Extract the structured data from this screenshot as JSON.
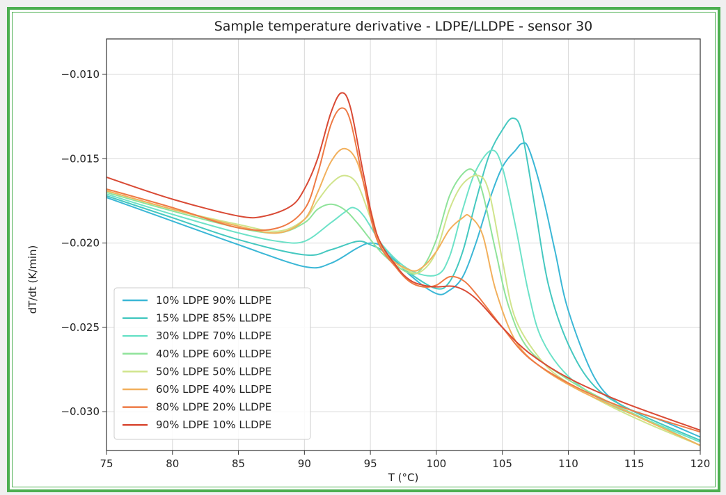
{
  "chart_data": {
    "type": "line",
    "title": "Sample temperature derivative - LDPE/LLDPE - sensor 30",
    "xlabel": "T (°C)",
    "ylabel": "dT/dt (K/min)",
    "xlim": [
      75,
      120
    ],
    "ylim": [
      -0.0323,
      -0.0079
    ],
    "xticks": [
      75,
      80,
      85,
      90,
      95,
      100,
      105,
      110,
      115,
      120
    ],
    "yticks": [
      -0.01,
      -0.015,
      -0.02,
      -0.025,
      -0.03
    ],
    "xtick_labels": [
      "75",
      "80",
      "85",
      "90",
      "95",
      "100",
      "105",
      "110",
      "115",
      "120"
    ],
    "ytick_labels": [
      "−0.010",
      "−0.015",
      "−0.020",
      "−0.025",
      "−0.030"
    ],
    "grid": true,
    "legend_position": "lower-left",
    "series": [
      {
        "name": "10% LDPE 90% LLDPE",
        "color": "#3bb7d6",
        "points": [
          [
            75,
            -0.0173
          ],
          [
            80,
            -0.0187
          ],
          [
            85,
            -0.0201
          ],
          [
            90,
            -0.0214
          ],
          [
            92,
            -0.0212
          ],
          [
            94,
            -0.0203
          ],
          [
            95,
            -0.02
          ],
          [
            96,
            -0.0203
          ],
          [
            98,
            -0.0219
          ],
          [
            100,
            -0.023
          ],
          [
            101,
            -0.0228
          ],
          [
            102,
            -0.022
          ],
          [
            103,
            -0.02
          ],
          [
            104,
            -0.0175
          ],
          [
            105,
            -0.0155
          ],
          [
            106,
            -0.0145
          ],
          [
            106.5,
            -0.0141
          ],
          [
            107,
            -0.0144
          ],
          [
            108,
            -0.017
          ],
          [
            109,
            -0.0205
          ],
          [
            110,
            -0.024
          ],
          [
            112,
            -0.028
          ],
          [
            114,
            -0.0296
          ],
          [
            117,
            -0.0305
          ],
          [
            120,
            -0.0315
          ]
        ]
      },
      {
        "name": "15% LDPE 85% LLDPE",
        "color": "#45c8c0",
        "points": [
          [
            75,
            -0.0172
          ],
          [
            80,
            -0.0185
          ],
          [
            85,
            -0.0198
          ],
          [
            90,
            -0.0207
          ],
          [
            92,
            -0.0204
          ],
          [
            94,
            -0.0199
          ],
          [
            95,
            -0.0201
          ],
          [
            96,
            -0.0205
          ],
          [
            98,
            -0.0218
          ],
          [
            100,
            -0.0227
          ],
          [
            101,
            -0.0223
          ],
          [
            102,
            -0.0205
          ],
          [
            103,
            -0.0175
          ],
          [
            104,
            -0.0148
          ],
          [
            105,
            -0.0133
          ],
          [
            105.8,
            -0.0126
          ],
          [
            106.5,
            -0.0135
          ],
          [
            107.5,
            -0.018
          ],
          [
            108.5,
            -0.0225
          ],
          [
            110,
            -0.026
          ],
          [
            112,
            -0.0285
          ],
          [
            115,
            -0.03
          ],
          [
            120,
            -0.0317
          ]
        ]
      },
      {
        "name": "30% LDPE 70% LLDPE",
        "color": "#6de2c8",
        "points": [
          [
            75,
            -0.0171
          ],
          [
            80,
            -0.0183
          ],
          [
            85,
            -0.0194
          ],
          [
            88,
            -0.0199
          ],
          [
            90,
            -0.0199
          ],
          [
            92,
            -0.0188
          ],
          [
            93,
            -0.0182
          ],
          [
            93.7,
            -0.0179
          ],
          [
            94.5,
            -0.0184
          ],
          [
            96,
            -0.0202
          ],
          [
            98,
            -0.0216
          ],
          [
            100,
            -0.0219
          ],
          [
            101,
            -0.0208
          ],
          [
            102,
            -0.018
          ],
          [
            103,
            -0.0157
          ],
          [
            104.2,
            -0.0145
          ],
          [
            105,
            -0.0155
          ],
          [
            106,
            -0.019
          ],
          [
            107,
            -0.023
          ],
          [
            108,
            -0.0257
          ],
          [
            110,
            -0.0279
          ],
          [
            113,
            -0.0295
          ],
          [
            116,
            -0.0305
          ],
          [
            120,
            -0.0318
          ]
        ]
      },
      {
        "name": "40% LDPE 60% LLDPE",
        "color": "#8fe39a",
        "points": [
          [
            75,
            -0.017
          ],
          [
            80,
            -0.0181
          ],
          [
            85,
            -0.0191
          ],
          [
            88,
            -0.0194
          ],
          [
            90,
            -0.0188
          ],
          [
            91,
            -0.018
          ],
          [
            92,
            -0.0177
          ],
          [
            93,
            -0.018
          ],
          [
            94,
            -0.0188
          ],
          [
            96,
            -0.0207
          ],
          [
            98,
            -0.0218
          ],
          [
            99,
            -0.0214
          ],
          [
            100,
            -0.0198
          ],
          [
            101,
            -0.0172
          ],
          [
            102,
            -0.0159
          ],
          [
            102.8,
            -0.0157
          ],
          [
            103.5,
            -0.017
          ],
          [
            104.5,
            -0.0205
          ],
          [
            105.5,
            -0.0238
          ],
          [
            107,
            -0.0263
          ],
          [
            110,
            -0.0281
          ],
          [
            113,
            -0.0294
          ],
          [
            116,
            -0.0305
          ],
          [
            120,
            -0.032
          ]
        ]
      },
      {
        "name": "50% LDPE 50% LLDPE",
        "color": "#d0e48c",
        "points": [
          [
            75,
            -0.0169
          ],
          [
            80,
            -0.018
          ],
          [
            85,
            -0.0189
          ],
          [
            88,
            -0.0193
          ],
          [
            90,
            -0.0186
          ],
          [
            91,
            -0.0175
          ],
          [
            92,
            -0.0165
          ],
          [
            93,
            -0.016
          ],
          [
            94,
            -0.0165
          ],
          [
            95,
            -0.0185
          ],
          [
            96,
            -0.0205
          ],
          [
            98,
            -0.0217
          ],
          [
            99,
            -0.0216
          ],
          [
            100,
            -0.0205
          ],
          [
            101,
            -0.018
          ],
          [
            102,
            -0.0165
          ],
          [
            103.2,
            -0.016
          ],
          [
            104,
            -0.017
          ],
          [
            105,
            -0.021
          ],
          [
            106,
            -0.0245
          ],
          [
            108,
            -0.027
          ],
          [
            110,
            -0.0283
          ],
          [
            113,
            -0.0296
          ],
          [
            116,
            -0.0307
          ],
          [
            120,
            -0.032
          ]
        ]
      },
      {
        "name": "60% LDPE 40% LLDPE",
        "color": "#f2b05c",
        "points": [
          [
            75,
            -0.0169
          ],
          [
            80,
            -0.018
          ],
          [
            85,
            -0.019
          ],
          [
            88,
            -0.0194
          ],
          [
            90,
            -0.0186
          ],
          [
            91,
            -0.017
          ],
          [
            92,
            -0.0152
          ],
          [
            93,
            -0.0144
          ],
          [
            94,
            -0.0152
          ],
          [
            95,
            -0.018
          ],
          [
            96,
            -0.0205
          ],
          [
            98,
            -0.0216
          ],
          [
            99,
            -0.0214
          ],
          [
            100,
            -0.0205
          ],
          [
            101,
            -0.0192
          ],
          [
            102,
            -0.0185
          ],
          [
            102.5,
            -0.0184
          ],
          [
            103.5,
            -0.0195
          ],
          [
            104.5,
            -0.0228
          ],
          [
            106,
            -0.0258
          ],
          [
            108,
            -0.0274
          ],
          [
            111,
            -0.0288
          ],
          [
            115,
            -0.0302
          ],
          [
            120,
            -0.032
          ]
        ]
      },
      {
        "name": "80% LDPE 20% LLDPE",
        "color": "#ee7a45",
        "points": [
          [
            75,
            -0.0168
          ],
          [
            80,
            -0.0179
          ],
          [
            85,
            -0.0191
          ],
          [
            88,
            -0.0191
          ],
          [
            90,
            -0.018
          ],
          [
            91,
            -0.0159
          ],
          [
            92,
            -0.013
          ],
          [
            92.8,
            -0.012
          ],
          [
            93.5,
            -0.0128
          ],
          [
            94.5,
            -0.0165
          ],
          [
            95.5,
            -0.0198
          ],
          [
            97,
            -0.0215
          ],
          [
            98,
            -0.0223
          ],
          [
            99,
            -0.0226
          ],
          [
            100,
            -0.0225
          ],
          [
            101,
            -0.022
          ],
          [
            102,
            -0.0222
          ],
          [
            103,
            -0.023
          ],
          [
            105,
            -0.025
          ],
          [
            107,
            -0.0268
          ],
          [
            110,
            -0.0283
          ],
          [
            114,
            -0.0297
          ],
          [
            120,
            -0.0312
          ]
        ]
      },
      {
        "name": "90% LDPE 10% LLDPE",
        "color": "#d94a35",
        "points": [
          [
            75,
            -0.0161
          ],
          [
            80,
            -0.0174
          ],
          [
            85,
            -0.0184
          ],
          [
            87,
            -0.0184
          ],
          [
            89,
            -0.0178
          ],
          [
            90,
            -0.0168
          ],
          [
            91,
            -0.015
          ],
          [
            92,
            -0.0123
          ],
          [
            92.8,
            -0.0111
          ],
          [
            93.5,
            -0.012
          ],
          [
            94.5,
            -0.016
          ],
          [
            95.5,
            -0.0195
          ],
          [
            97,
            -0.0214
          ],
          [
            98,
            -0.0222
          ],
          [
            99,
            -0.0225
          ],
          [
            100,
            -0.0226
          ],
          [
            101.5,
            -0.0226
          ],
          [
            103,
            -0.0233
          ],
          [
            105,
            -0.025
          ],
          [
            107,
            -0.0265
          ],
          [
            110,
            -0.028
          ],
          [
            114,
            -0.0294
          ],
          [
            120,
            -0.0311
          ]
        ]
      }
    ]
  }
}
